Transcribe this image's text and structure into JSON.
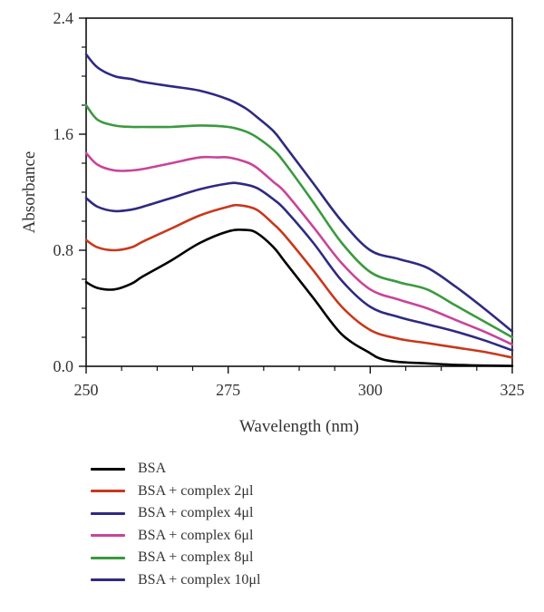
{
  "chart_data": {
    "type": "line",
    "xlabel": "Wavelength (nm)",
    "ylabel": "Absorbance",
    "xlim": [
      250,
      325
    ],
    "ylim": [
      0,
      2.4
    ],
    "xticks": [
      250,
      275,
      300,
      325
    ],
    "yticks": [
      "0.0",
      "0.8",
      "1.6",
      "2.4"
    ],
    "grid": false,
    "legend_position": "bottom",
    "series": [
      {
        "name": "BSA",
        "color": "#000000",
        "x": [
          250,
          252,
          255,
          258,
          260,
          265,
          270,
          275,
          278,
          280,
          283,
          285,
          290,
          295,
          300,
          302,
          305,
          310,
          315,
          320,
          325
        ],
        "y": [
          0.58,
          0.54,
          0.53,
          0.57,
          0.62,
          0.73,
          0.85,
          0.93,
          0.94,
          0.92,
          0.82,
          0.72,
          0.47,
          0.22,
          0.09,
          0.05,
          0.03,
          0.02,
          0.01,
          0.005,
          0.003
        ]
      },
      {
        "name": "BSA + complex 2μl",
        "color": "#c8381c",
        "x": [
          250,
          252,
          255,
          258,
          260,
          265,
          270,
          275,
          277,
          280,
          283,
          285,
          290,
          295,
          300,
          305,
          310,
          315,
          320,
          325
        ],
        "y": [
          0.87,
          0.82,
          0.8,
          0.82,
          0.86,
          0.95,
          1.04,
          1.1,
          1.11,
          1.08,
          0.98,
          0.9,
          0.66,
          0.41,
          0.25,
          0.19,
          0.16,
          0.13,
          0.1,
          0.06
        ]
      },
      {
        "name": "BSA + complex 4μl",
        "color": "#2e2a82",
        "x": [
          250,
          252,
          255,
          258,
          260,
          265,
          270,
          275,
          277,
          280,
          283,
          285,
          290,
          295,
          300,
          305,
          310,
          315,
          320,
          325
        ],
        "y": [
          1.16,
          1.1,
          1.07,
          1.08,
          1.1,
          1.16,
          1.22,
          1.26,
          1.26,
          1.23,
          1.15,
          1.08,
          0.85,
          0.59,
          0.41,
          0.34,
          0.29,
          0.24,
          0.18,
          0.11
        ]
      },
      {
        "name": "BSA + complex 6μl",
        "color": "#c8449a",
        "x": [
          250,
          252,
          255,
          258,
          260,
          265,
          270,
          273,
          275,
          278,
          280,
          283,
          285,
          290,
          295,
          300,
          305,
          310,
          315,
          320,
          325
        ],
        "y": [
          1.47,
          1.39,
          1.35,
          1.35,
          1.36,
          1.4,
          1.44,
          1.44,
          1.44,
          1.41,
          1.37,
          1.27,
          1.2,
          0.96,
          0.71,
          0.53,
          0.46,
          0.4,
          0.32,
          0.24,
          0.15
        ]
      },
      {
        "name": "BSA + complex 8μl",
        "color": "#3a9a3e",
        "x": [
          250,
          252,
          255,
          258,
          260,
          265,
          270,
          275,
          278,
          280,
          283,
          285,
          290,
          295,
          300,
          305,
          310,
          315,
          320,
          325
        ],
        "y": [
          1.8,
          1.7,
          1.66,
          1.65,
          1.65,
          1.65,
          1.66,
          1.65,
          1.62,
          1.58,
          1.49,
          1.4,
          1.13,
          0.85,
          0.65,
          0.58,
          0.53,
          0.42,
          0.31,
          0.2
        ]
      },
      {
        "name": "BSA + complex 10μl",
        "color": "#2e2a82",
        "x": [
          250,
          252,
          255,
          258,
          260,
          265,
          270,
          275,
          278,
          280,
          283,
          285,
          290,
          295,
          300,
          305,
          310,
          315,
          320,
          325
        ],
        "y": [
          2.15,
          2.06,
          2.0,
          1.98,
          1.96,
          1.93,
          1.9,
          1.84,
          1.78,
          1.72,
          1.62,
          1.52,
          1.26,
          1.0,
          0.8,
          0.74,
          0.68,
          0.55,
          0.4,
          0.24
        ]
      }
    ]
  }
}
